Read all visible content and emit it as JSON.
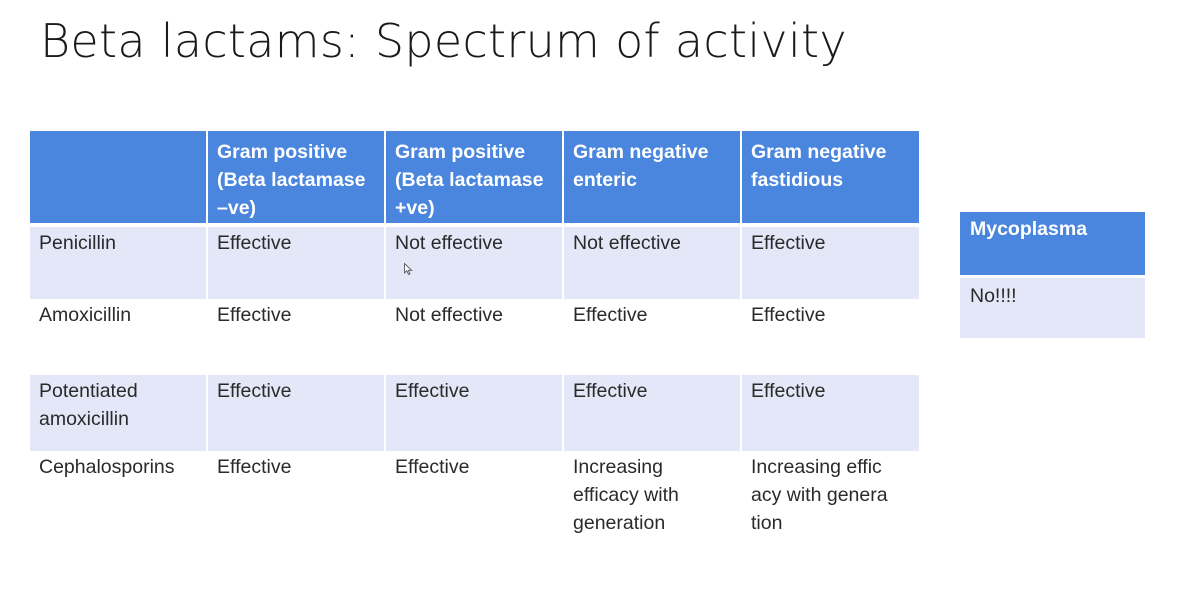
{
  "slide": {
    "title": "Beta lactams: Spectrum of activity"
  },
  "table": {
    "headers": [
      "",
      "Gram positive (Beta lactamase –ve)",
      "Gram positive (Beta lactamase +ve)",
      "Gram negative enteric",
      "Gram negative fastidious"
    ],
    "rows": [
      {
        "drug": "Penicillin",
        "cells": [
          "Effective",
          "Not effective",
          "Not effective",
          "Effective"
        ]
      },
      {
        "drug": "Amoxicillin",
        "cells": [
          "Effective",
          "Not effective",
          "Effective",
          "Effective"
        ]
      },
      {
        "drug": "Potentiated amoxicillin",
        "cells": [
          "Effective",
          "Effective",
          "Effective",
          "Effective"
        ]
      },
      {
        "drug": "Cephalosporins",
        "cells": [
          "Effective",
          "Effective",
          "Increasing efficacy with generation",
          "Increasing  effic acy with  genera tion"
        ]
      }
    ]
  },
  "side_table": {
    "header": "Mycoplasma",
    "value": "No!!!!"
  },
  "icons": {
    "cursor": "mouse-pointer-icon"
  }
}
